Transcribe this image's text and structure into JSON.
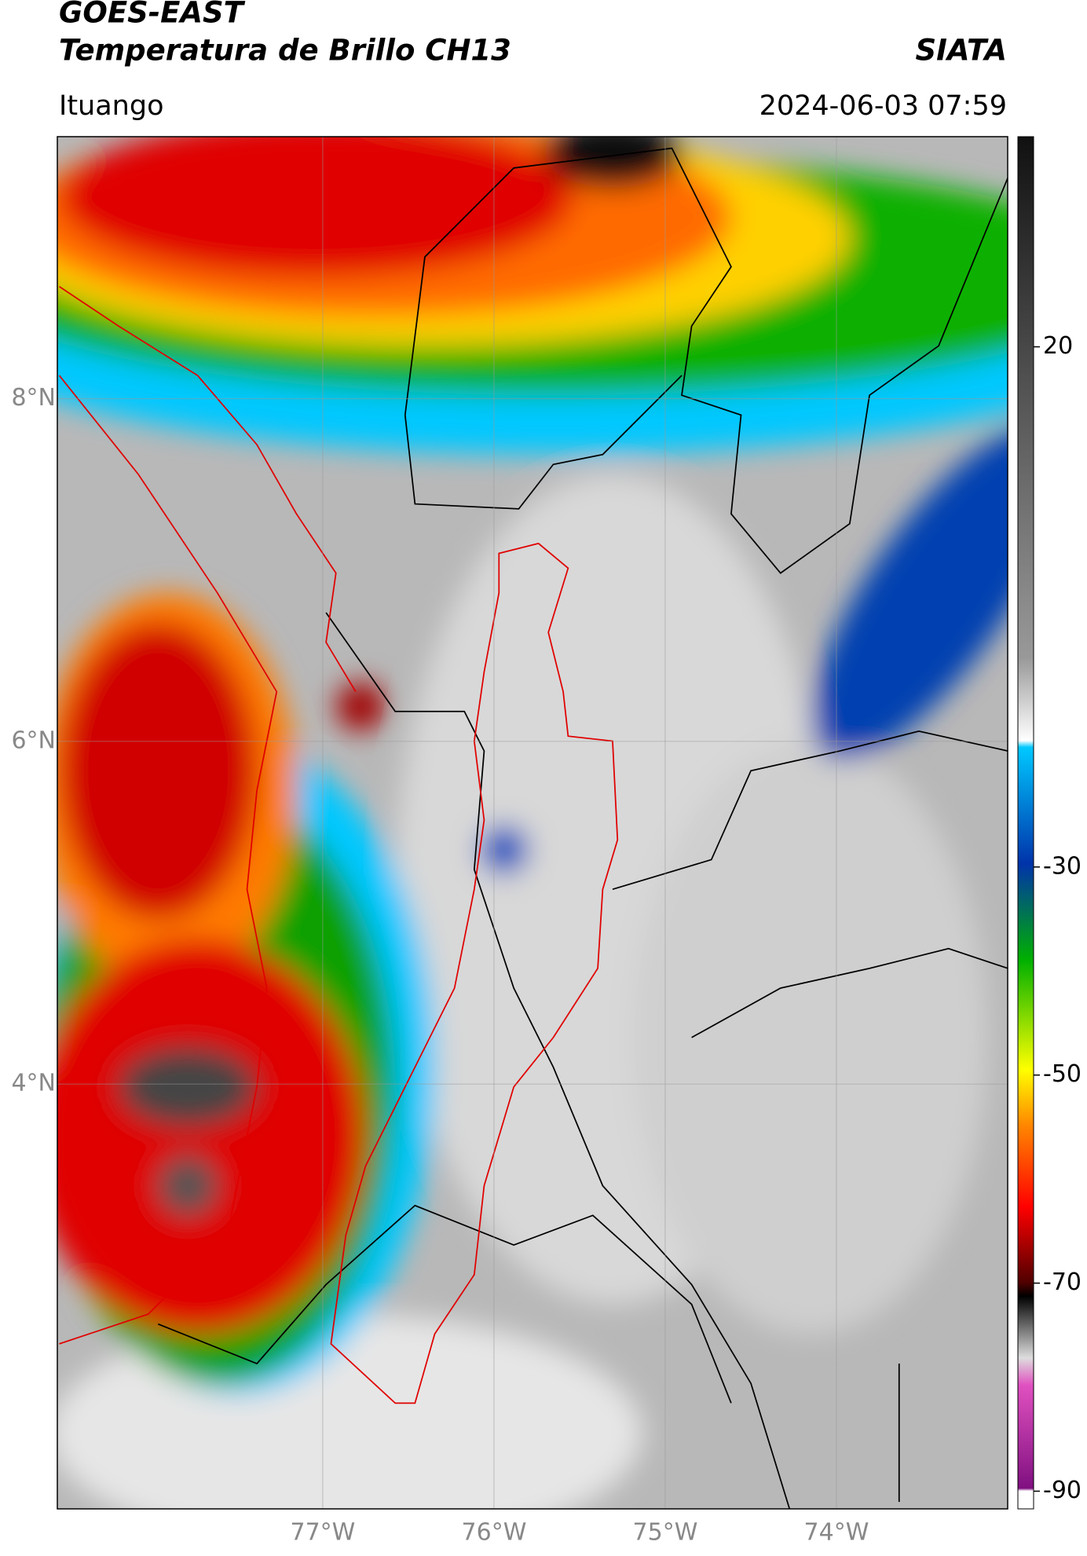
{
  "header": {
    "title_line1": "GOES-EAST",
    "title_line2": "Temperatura de Brillo CH13",
    "source": "SIATA",
    "region": "Ituango",
    "datetime": "2024-06-03 07:59"
  },
  "map": {
    "xlim": [
      -78.55,
      -73.0
    ],
    "ylim": [
      1.52,
      9.53
    ],
    "xticks": [
      {
        "value": -77,
        "label": "77°W"
      },
      {
        "value": -76,
        "label": "76°W"
      },
      {
        "value": -75,
        "label": "75°W"
      },
      {
        "value": -74,
        "label": "74°W"
      }
    ],
    "yticks": [
      {
        "value": 8,
        "label": "8°N"
      },
      {
        "value": 6,
        "label": "6°N"
      },
      {
        "value": 4,
        "label": "4°N"
      }
    ]
  },
  "colorbar": {
    "lim": [
      -91.7,
      40.2
    ],
    "ticks": [
      20,
      -30,
      -50,
      -70,
      -90
    ]
  }
}
